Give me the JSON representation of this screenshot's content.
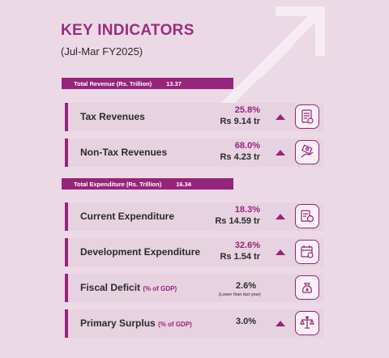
{
  "header": {
    "title": "KEY INDICATORS",
    "subtitle": "(Jul-Mar FY2025)"
  },
  "revenue_band": {
    "label": "Total Revenue (Rs. Trillion)",
    "value": "13.37"
  },
  "expenditure_band": {
    "label": "Total Expenditure (Rs. Trillion)",
    "value": "16.34"
  },
  "indicators": [
    {
      "label": "Tax Revenues",
      "percent": "25.8%",
      "amount": "Rs 9.14 tr",
      "trend": "up",
      "icon": "tax-document-icon"
    },
    {
      "label": "Non-Tax Revenues",
      "percent": "68.0%",
      "amount": "Rs 4.23 tr",
      "trend": "up",
      "icon": "cash-hand-icon"
    },
    {
      "label": "Current Expenditure",
      "percent": "18.3%",
      "amount": "Rs 14.59 tr",
      "trend": "up",
      "icon": "invoice-coin-icon"
    },
    {
      "label": "Development Expenditure",
      "percent": "32.6%",
      "amount": "Rs 1.54 tr",
      "trend": "up",
      "icon": "calendar-budget-icon"
    },
    {
      "label": "Fiscal Deficit",
      "unit": "(% of GDP)",
      "value": "2.6%",
      "note": "(Lower than last year)",
      "icon": "money-bag-down-icon"
    },
    {
      "label": "Primary Surplus",
      "unit": "(% of GDP)",
      "value": "3.0%",
      "trend": "up",
      "icon": "balance-scale-icon"
    }
  ],
  "colors": {
    "accent": "#97247b",
    "background": "#ecd9e6",
    "card": "#e7d2e0"
  }
}
